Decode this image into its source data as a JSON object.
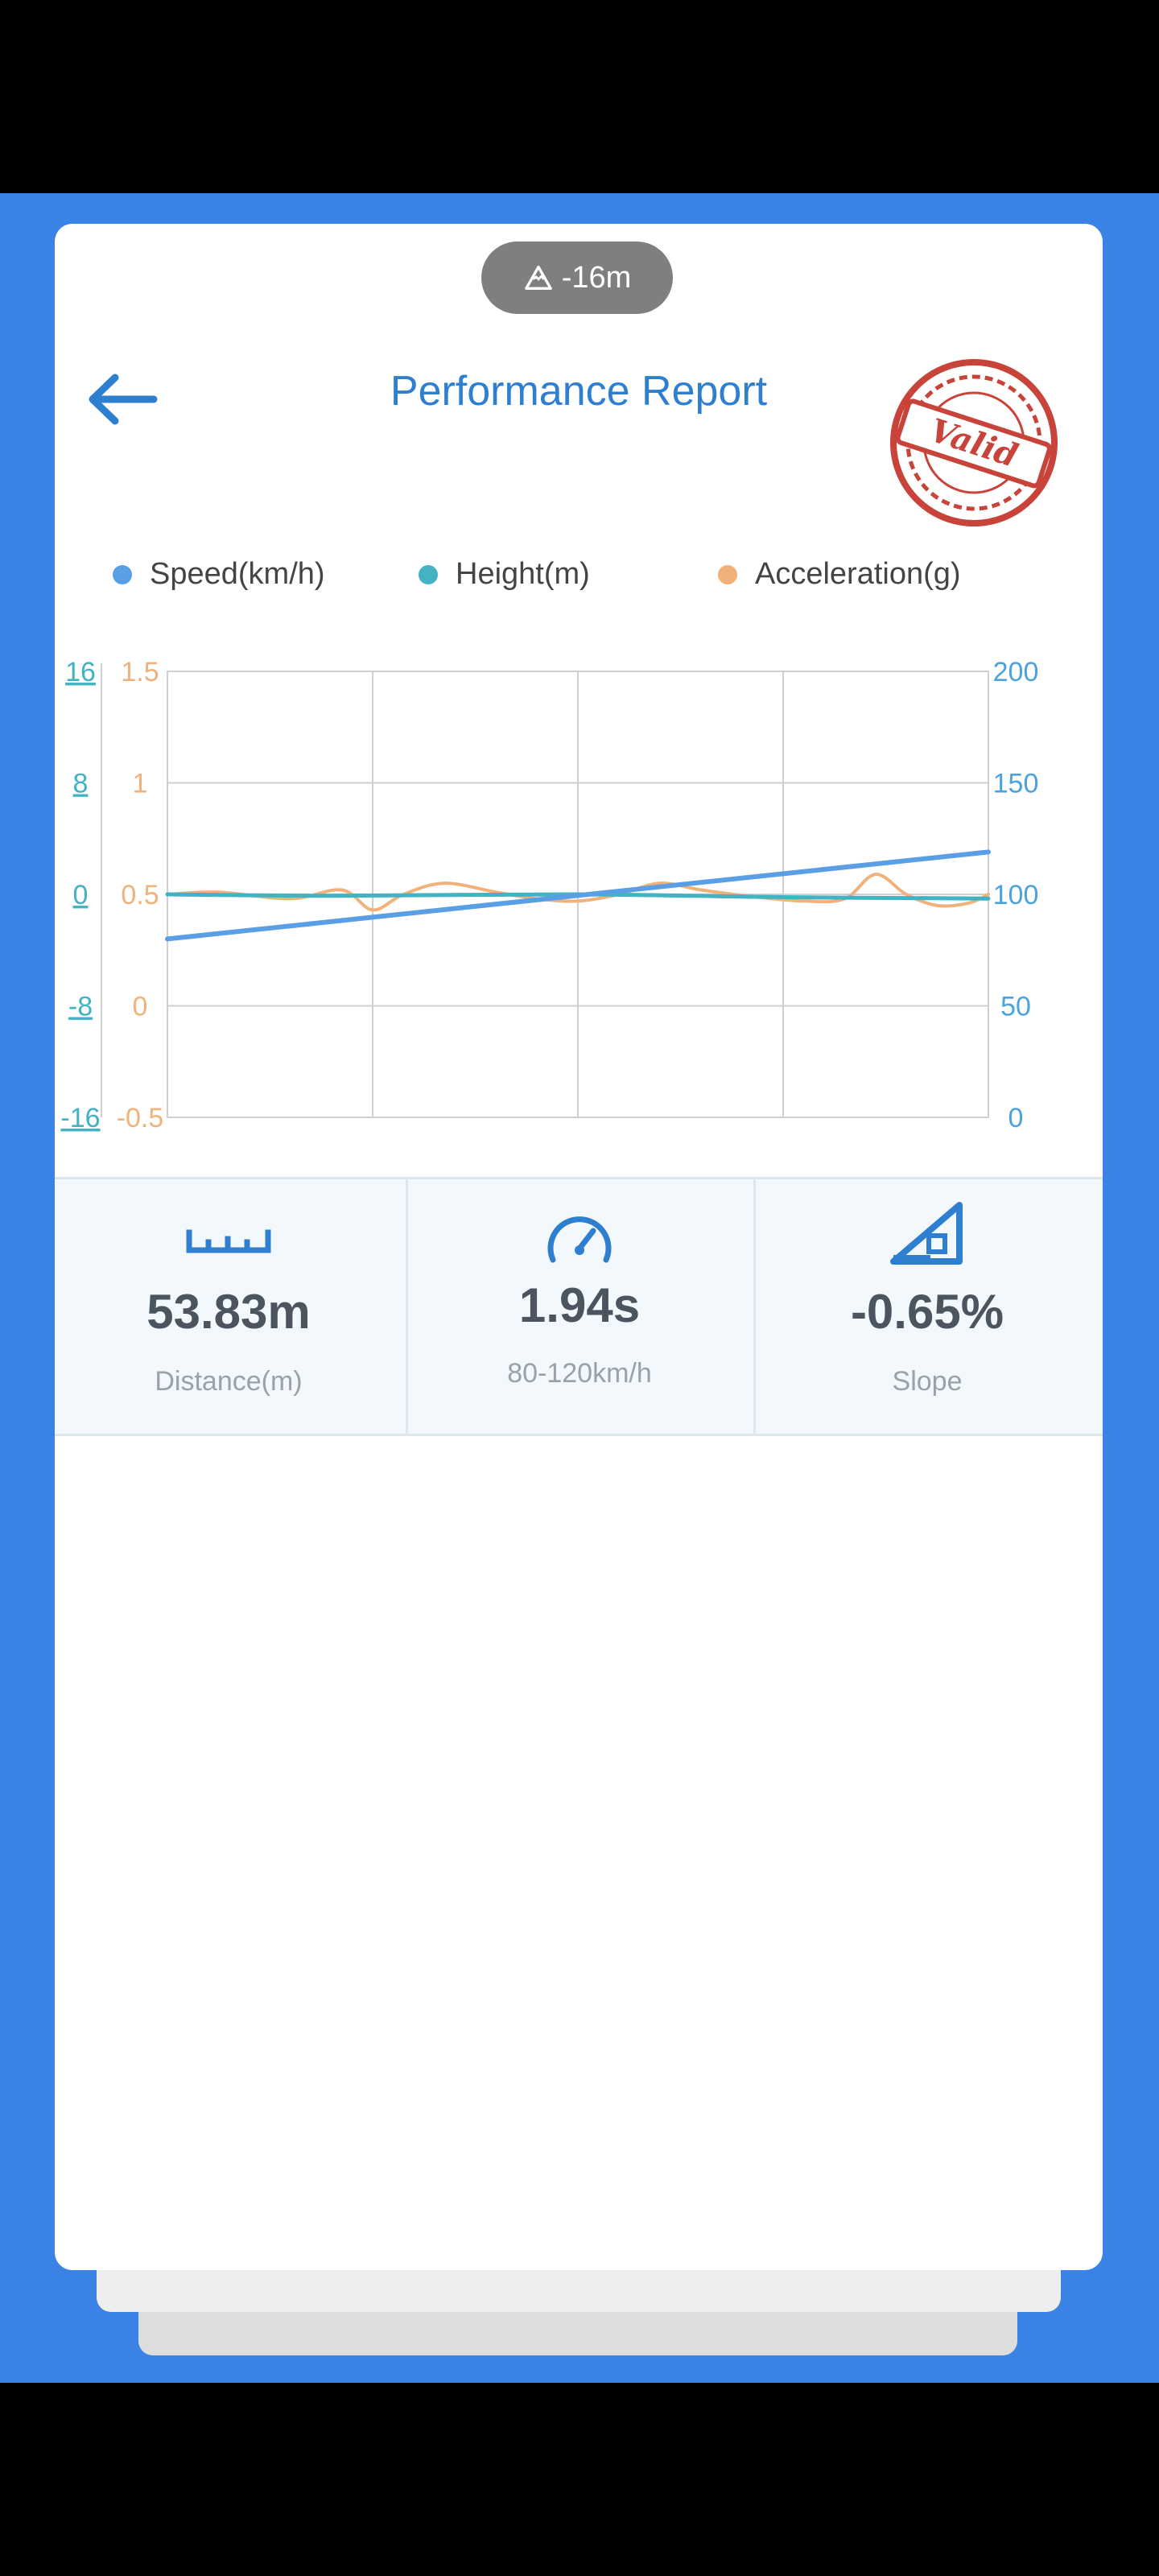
{
  "header": {
    "elevation_badge": "-16m",
    "title": "Performance Report",
    "stamp_text": "Valid"
  },
  "legend": [
    {
      "label": "Speed(km/h)",
      "color": "#5a9ee6"
    },
    {
      "label": "Height(m)",
      "color": "#43b3c4"
    },
    {
      "label": "Acceleration(g)",
      "color": "#f0b27a"
    }
  ],
  "chart_data": {
    "type": "line",
    "x": [
      0,
      1,
      2,
      3,
      4
    ],
    "axes": {
      "height_ticks": [
        "16",
        "8",
        "0",
        "-8",
        "-16"
      ],
      "height_range": [
        -16,
        16
      ],
      "accel_ticks": [
        "1.5",
        "1",
        "0.5",
        "0",
        "-0.5"
      ],
      "accel_range": [
        -0.5,
        1.5
      ],
      "speed_ticks": [
        "200",
        "150",
        "100",
        "50",
        "0"
      ],
      "speed_range": [
        0,
        200
      ]
    },
    "grid": true,
    "series": [
      {
        "name": "Speed(km/h)",
        "color": "#5a9ee6",
        "axis": "speed",
        "x": [
          0,
          4
        ],
        "values": [
          80,
          119
        ]
      },
      {
        "name": "Height(m)",
        "color": "#43b3c4",
        "axis": "height",
        "x": [
          0,
          0.8,
          2,
          3,
          4
        ],
        "values": [
          0,
          -0.1,
          0,
          -0.2,
          -0.3
        ]
      },
      {
        "name": "Acceleration(g)",
        "color": "#f0b27a",
        "axis": "accel",
        "x": [
          0,
          0.25,
          0.6,
          0.85,
          1.0,
          1.15,
          1.35,
          1.6,
          1.8,
          2.0,
          2.2,
          2.4,
          2.6,
          2.85,
          3.1,
          3.3,
          3.45,
          3.6,
          3.75,
          3.9,
          4.0
        ],
        "values": [
          0.5,
          0.51,
          0.48,
          0.52,
          0.43,
          0.5,
          0.55,
          0.51,
          0.48,
          0.47,
          0.5,
          0.55,
          0.52,
          0.49,
          0.47,
          0.48,
          0.59,
          0.5,
          0.45,
          0.46,
          0.5
        ]
      }
    ]
  },
  "stats": [
    {
      "icon": "ruler-icon",
      "value": "53.83m",
      "label": "Distance(m)"
    },
    {
      "icon": "speedometer-icon",
      "value": "1.94s",
      "label": "80-120km/h"
    },
    {
      "icon": "slope-icon",
      "value": "-0.65%",
      "label": "Slope"
    }
  ]
}
